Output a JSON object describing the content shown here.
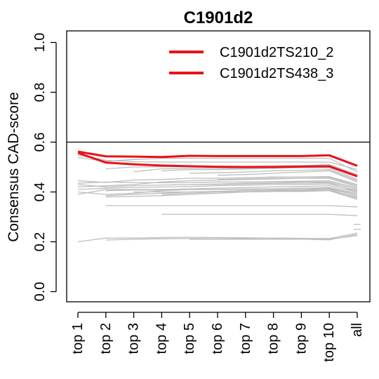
{
  "chart_data": {
    "type": "line",
    "title": "C1901d2",
    "xlabel": "",
    "ylabel": "Consensus CAD-score",
    "categories": [
      "top 1",
      "top 2",
      "top 3",
      "top 4",
      "top 5",
      "top 6",
      "top 7",
      "top 8",
      "top 9",
      "top 10",
      "all"
    ],
    "yticks": [
      "0.0",
      "0.2",
      "0.4",
      "0.6",
      "0.8",
      "1.0"
    ],
    "ylim": [
      0.0,
      1.0
    ],
    "reference_line_y": 0.6,
    "grid": false,
    "legend_position": "top-right",
    "highlight_color": "#e8111a",
    "background_color": "#bebebe",
    "highlight_series": [
      {
        "name": "C1901d2TS210_2",
        "values": [
          0.562,
          0.543,
          0.542,
          0.54,
          0.545,
          0.544,
          0.544,
          0.544,
          0.544,
          0.547,
          0.505
        ]
      },
      {
        "name": "C1901d2TS438_3",
        "values": [
          0.557,
          0.518,
          0.511,
          0.506,
          0.503,
          0.501,
          0.5,
          0.5,
          0.502,
          0.503,
          0.463
        ]
      }
    ],
    "background_series": [
      {
        "values": [
          0.548,
          0.527,
          0.521,
          0.52,
          0.52,
          0.52,
          0.52,
          0.52,
          0.52,
          0.52,
          0.49
        ]
      },
      {
        "values": [
          0.538,
          0.523,
          0.53,
          0.535,
          0.535,
          0.535,
          0.535,
          0.535,
          0.535,
          0.535,
          0.48
        ]
      },
      {
        "values": [
          null,
          0.493,
          0.5,
          0.501,
          0.502,
          0.503,
          0.503,
          0.505,
          0.505,
          0.51,
          0.47
        ]
      },
      {
        "values": [
          null,
          null,
          0.481,
          0.493,
          0.495,
          0.495,
          0.495,
          0.5,
          0.5,
          0.5,
          0.46
        ]
      },
      {
        "values": [
          null,
          null,
          null,
          0.485,
          0.49,
          0.49,
          0.492,
          0.495,
          0.497,
          0.497,
          0.45
        ]
      },
      {
        "values": [
          null,
          null,
          null,
          null,
          0.475,
          0.477,
          0.48,
          0.485,
          0.487,
          0.49,
          0.445
        ]
      },
      {
        "values": [
          null,
          null,
          null,
          null,
          null,
          0.467,
          0.47,
          0.475,
          0.48,
          0.485,
          0.44
        ]
      },
      {
        "values": [
          0.445,
          0.438,
          0.448,
          0.45,
          0.455,
          0.455,
          0.457,
          0.46,
          0.46,
          0.462,
          0.43
        ]
      },
      {
        "values": [
          0.42,
          0.425,
          0.43,
          0.44,
          0.445,
          0.448,
          0.45,
          0.452,
          0.455,
          0.455,
          0.42
        ]
      },
      {
        "values": [
          0.435,
          0.44,
          0.438,
          0.437,
          0.438,
          0.44,
          0.44,
          0.442,
          0.443,
          0.445,
          0.415
        ]
      },
      {
        "values": [
          0.43,
          0.42,
          0.425,
          0.428,
          0.43,
          0.432,
          0.435,
          0.437,
          0.44,
          0.44,
          0.41
        ]
      },
      {
        "values": [
          0.41,
          0.415,
          0.418,
          0.42,
          0.422,
          0.425,
          0.427,
          0.43,
          0.43,
          0.432,
          0.405
        ]
      },
      {
        "values": [
          0.39,
          0.41,
          0.41,
          0.41,
          0.412,
          0.415,
          0.418,
          0.42,
          0.422,
          0.425,
          0.4
        ]
      },
      {
        "values": [
          0.4,
          0.39,
          0.395,
          0.405,
          0.41,
          0.41,
          0.41,
          0.412,
          0.415,
          0.418,
          0.395
        ]
      },
      {
        "values": [
          null,
          0.405,
          0.408,
          0.408,
          0.41,
          0.41,
          0.412,
          0.412,
          0.415,
          0.415,
          0.39
        ]
      },
      {
        "values": [
          null,
          0.385,
          0.39,
          0.395,
          0.4,
          0.402,
          0.405,
          0.408,
          0.41,
          0.412,
          0.385
        ]
      },
      {
        "values": [
          null,
          0.38,
          0.382,
          0.385,
          0.39,
          0.395,
          0.4,
          0.402,
          0.405,
          0.405,
          0.38
        ]
      },
      {
        "values": [
          null,
          null,
          0.4,
          0.4,
          0.4,
          0.402,
          0.405,
          0.405,
          0.408,
          0.41,
          0.375
        ]
      },
      {
        "values": [
          null,
          null,
          null,
          0.39,
          0.395,
          0.4,
          0.4,
          0.402,
          0.402,
          0.405,
          0.37
        ]
      },
      {
        "values": [
          null,
          null,
          null,
          null,
          0.43,
          0.43,
          0.432,
          0.435,
          0.435,
          0.437,
          0.4
        ]
      },
      {
        "values": [
          null,
          null,
          null,
          null,
          null,
          0.45,
          0.452,
          0.455,
          0.455,
          0.458,
          0.425
        ]
      },
      {
        "values": [
          null,
          0.345,
          0.345,
          0.345,
          0.345,
          0.345,
          0.345,
          0.345,
          0.345,
          0.345,
          0.34
        ]
      },
      {
        "values": [
          null,
          null,
          null,
          0.31,
          0.31,
          0.31,
          0.31,
          0.31,
          0.31,
          0.31,
          0.305
        ]
      },
      {
        "values": [
          0.2,
          0.215,
          0.215,
          0.217,
          0.218,
          0.217,
          0.216,
          0.215,
          0.214,
          0.213,
          0.235
        ]
      },
      {
        "values": [
          null,
          0.207,
          0.21,
          0.212,
          0.213,
          0.212,
          0.212,
          0.211,
          0.21,
          0.208,
          0.23
        ]
      },
      {
        "values": [
          null,
          null,
          null,
          null,
          0.21,
          0.21,
          0.21,
          0.21,
          0.21,
          0.21,
          0.225
        ]
      },
      {
        "values": [
          null,
          null,
          null,
          null,
          null,
          null,
          null,
          null,
          null,
          null,
          0.27
        ]
      },
      {
        "values": [
          null,
          null,
          null,
          null,
          null,
          null,
          null,
          null,
          null,
          null,
          0.25
        ]
      }
    ]
  }
}
